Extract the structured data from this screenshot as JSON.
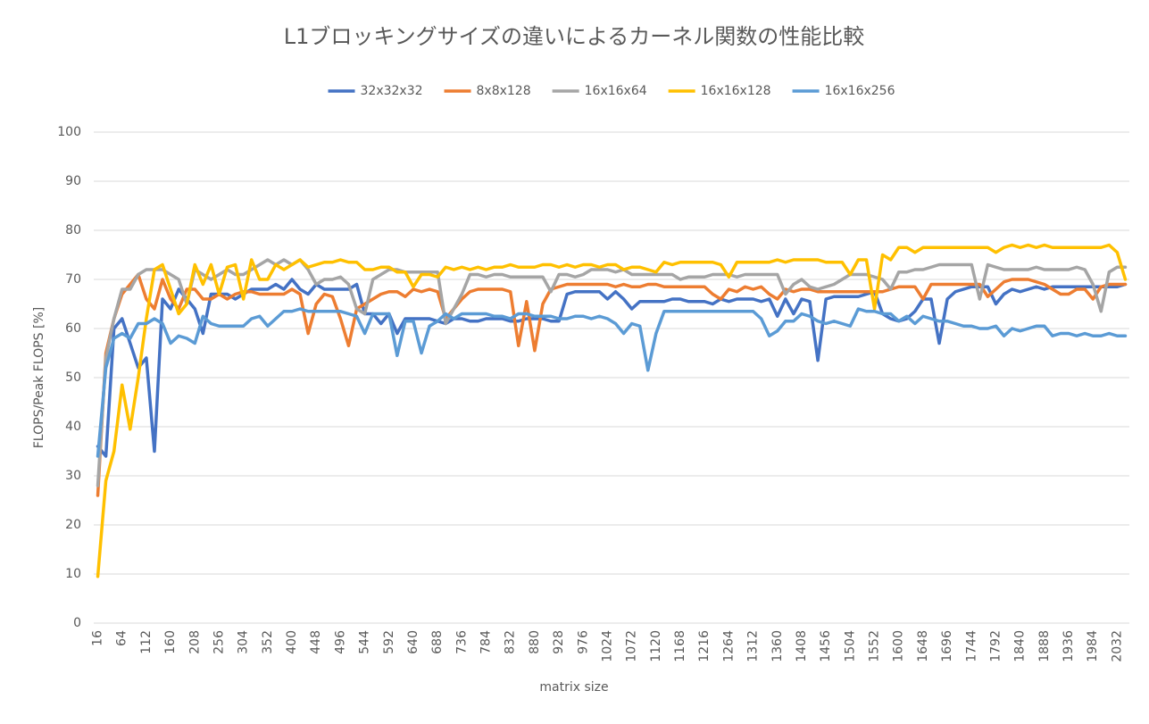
{
  "chart_data": {
    "type": "line",
    "title": "L1ブロッキングサイズの違いによるカーネル関数の性能比較",
    "x_label": "matrix size",
    "y_label": "FLOPS/Peak FLOPS [%]",
    "x": [
      16,
      32,
      48,
      64,
      80,
      96,
      112,
      128,
      144,
      160,
      176,
      192,
      208,
      224,
      240,
      256,
      272,
      288,
      304,
      320,
      336,
      352,
      368,
      384,
      400,
      416,
      432,
      448,
      464,
      480,
      496,
      512,
      528,
      544,
      560,
      576,
      592,
      608,
      624,
      640,
      656,
      672,
      688,
      704,
      720,
      736,
      752,
      768,
      784,
      800,
      816,
      832,
      848,
      864,
      880,
      896,
      912,
      928,
      944,
      960,
      976,
      992,
      1008,
      1024,
      1040,
      1056,
      1072,
      1088,
      1104,
      1120,
      1136,
      1152,
      1168,
      1184,
      1200,
      1216,
      1232,
      1248,
      1264,
      1280,
      1296,
      1312,
      1328,
      1344,
      1360,
      1376,
      1392,
      1408,
      1424,
      1440,
      1456,
      1472,
      1488,
      1504,
      1520,
      1536,
      1552,
      1568,
      1584,
      1600,
      1616,
      1632,
      1648,
      1664,
      1680,
      1696,
      1712,
      1728,
      1744,
      1760,
      1776,
      1792,
      1808,
      1824,
      1840,
      1856,
      1872,
      1888,
      1904,
      1920,
      1936,
      1952,
      1968,
      1984,
      2000,
      2016,
      2032,
      2048
    ],
    "xlim": [
      8,
      2056
    ],
    "xticks": [
      16,
      64,
      112,
      160,
      208,
      256,
      304,
      352,
      400,
      448,
      496,
      544,
      592,
      640,
      688,
      736,
      784,
      832,
      880,
      928,
      976,
      1024,
      1072,
      1120,
      1168,
      1216,
      1264,
      1312,
      1360,
      1408,
      1456,
      1504,
      1552,
      1600,
      1648,
      1696,
      1744,
      1792,
      1840,
      1888,
      1936,
      1984,
      2032
    ],
    "ylim": [
      0,
      100
    ],
    "yticks": [
      0,
      10,
      20,
      30,
      40,
      50,
      60,
      70,
      80,
      90,
      100
    ],
    "grid": true,
    "legend": "top",
    "series": [
      {
        "name": "32x32x32",
        "color": "#4472c4",
        "values": [
          36,
          34,
          60,
          62,
          57,
          52,
          54,
          35,
          66,
          64,
          68,
          66,
          64,
          59,
          67,
          67,
          67,
          66,
          67,
          68,
          68,
          68,
          69,
          68,
          70,
          68,
          67,
          69,
          68,
          68,
          68,
          68,
          69,
          63,
          63,
          61,
          63,
          59,
          62,
          62,
          62,
          62,
          61.5,
          61,
          62,
          62,
          61.5,
          61.5,
          62,
          62,
          62,
          61.5,
          61.5,
          62,
          62,
          62,
          61.5,
          61.5,
          67,
          67.5,
          67.5,
          67.5,
          67.5,
          66,
          67.5,
          66,
          64,
          65.5,
          65.5,
          65.5,
          65.5,
          66,
          66,
          65.5,
          65.5,
          65.5,
          65,
          66,
          65.5,
          66,
          66,
          66,
          65.5,
          66,
          62.5,
          66,
          63,
          66,
          65.5,
          53.5,
          66,
          66.5,
          66.5,
          66.5,
          66.5,
          67,
          67.5,
          63,
          62,
          61.5,
          62,
          63.5,
          66,
          66,
          57,
          66,
          67.5,
          68,
          68.5,
          68.5,
          68.5,
          65,
          67,
          68,
          67.5,
          68,
          68.5,
          68,
          68.5,
          68.5,
          68.5,
          68.5,
          68.5,
          68.5,
          68.5,
          68.5,
          68.5,
          69
        ]
      },
      {
        "name": "8x8x128",
        "color": "#ed7d31",
        "values": [
          26,
          55,
          62,
          67,
          69,
          71,
          66,
          64,
          70,
          66,
          64,
          68,
          68,
          66,
          66,
          67,
          66,
          67,
          67.5,
          67.5,
          67,
          67,
          67,
          67,
          68,
          67,
          59,
          65,
          67,
          66.5,
          62,
          56.5,
          64,
          65,
          66,
          67,
          67.5,
          67.5,
          66.5,
          68,
          67.5,
          68,
          67.5,
          62,
          64,
          66,
          67.5,
          68,
          68,
          68,
          68,
          67.5,
          56.5,
          65.5,
          55.5,
          65,
          68,
          68.5,
          69,
          69,
          69,
          69,
          69,
          69,
          68.5,
          69,
          68.5,
          68.5,
          69,
          69,
          68.5,
          68.5,
          68.5,
          68.5,
          68.5,
          68.5,
          67,
          66,
          68,
          67.5,
          68.5,
          68,
          68.5,
          67,
          66,
          68,
          67.5,
          68,
          68,
          67.5,
          67.5,
          67.5,
          67.5,
          67.5,
          67.5,
          67.5,
          67.5,
          67.5,
          68,
          68.5,
          68.5,
          68.5,
          66,
          69,
          69,
          69,
          69,
          69,
          69,
          69,
          66.5,
          68,
          69.5,
          70,
          70,
          70,
          69.5,
          69,
          68,
          67,
          67,
          68,
          68,
          66,
          68.5,
          69,
          69,
          69
        ]
      },
      {
        "name": "16x16x64",
        "color": "#a5a5a5",
        "values": [
          28,
          54,
          62,
          68,
          68,
          71,
          72,
          72,
          72,
          71,
          70,
          65,
          72,
          71,
          70,
          71,
          72,
          71,
          71,
          72,
          73,
          74,
          73,
          74,
          73,
          74,
          72,
          69,
          70,
          70,
          70.5,
          69,
          64,
          63,
          70,
          71,
          72,
          72,
          71.5,
          71.5,
          71.5,
          71.5,
          71.5,
          61,
          64,
          67,
          71,
          71,
          70.5,
          71,
          71,
          70.5,
          70.5,
          70.5,
          70.5,
          70.5,
          67.5,
          71,
          71,
          70.5,
          71,
          72,
          72,
          72,
          71.5,
          72,
          71,
          71,
          71,
          71,
          71,
          71,
          70,
          70.5,
          70.5,
          70.5,
          71,
          71,
          71,
          70.5,
          71,
          71,
          71,
          71,
          71,
          67,
          69,
          70,
          68.5,
          68,
          68.5,
          69,
          70,
          71,
          71,
          71,
          70.5,
          70,
          68,
          71.5,
          71.5,
          72,
          72,
          72.5,
          73,
          73,
          73,
          73,
          73,
          66,
          73,
          72.5,
          72,
          72,
          72,
          72,
          72.5,
          72,
          72,
          72,
          72,
          72.5,
          72,
          69,
          63.5,
          71.5,
          72.5,
          72.5
        ]
      },
      {
        "name": "16x16x128",
        "color": "#ffc000",
        "values": [
          9.5,
          29,
          35,
          48.5,
          39.5,
          50,
          62,
          72,
          73,
          68,
          63,
          65,
          73,
          69,
          73,
          67,
          72.5,
          73,
          66,
          74,
          70,
          70,
          73,
          72,
          73,
          74,
          72.5,
          73,
          73.5,
          73.5,
          74,
          73.5,
          73.5,
          72,
          72,
          72.5,
          72.5,
          71.5,
          71.5,
          68.5,
          71,
          71,
          70.5,
          72.5,
          72,
          72.5,
          72,
          72.5,
          72,
          72.5,
          72.5,
          73,
          72.5,
          72.5,
          72.5,
          73,
          73,
          72.5,
          73,
          72.5,
          73,
          73,
          72.5,
          73,
          73,
          72,
          72.5,
          72.5,
          72,
          71.5,
          73.5,
          73,
          73.5,
          73.5,
          73.5,
          73.5,
          73.5,
          73,
          70.5,
          73.5,
          73.5,
          73.5,
          73.5,
          73.5,
          74,
          73.5,
          74,
          74,
          74,
          74,
          73.5,
          73.5,
          73.5,
          71,
          74,
          74,
          64,
          75,
          74,
          76.5,
          76.5,
          75.5,
          76.5,
          76.5,
          76.5,
          76.5,
          76.5,
          76.5,
          76.5,
          76.5,
          76.5,
          75.5,
          76.5,
          77,
          76.5,
          77,
          76.5,
          77,
          76.5,
          76.5,
          76.5,
          76.5,
          76.5,
          76.5,
          76.5,
          77,
          75.5,
          70
        ]
      },
      {
        "name": "16x16x256",
        "color": "#5b9bd5",
        "values": [
          34,
          52,
          58,
          59,
          58,
          61,
          61,
          62,
          61,
          57,
          58.5,
          58,
          57,
          62.5,
          61,
          60.5,
          60.5,
          60.5,
          60.5,
          62,
          62.5,
          60.5,
          62,
          63.5,
          63.5,
          64,
          63.5,
          63.5,
          63.5,
          63.5,
          63.5,
          63,
          62.5,
          59,
          63,
          63,
          63,
          54.5,
          61.5,
          61.5,
          55,
          60.5,
          61.5,
          63,
          62,
          63,
          63,
          63,
          63,
          62.5,
          62.5,
          62,
          63,
          63,
          62.5,
          62.5,
          62.5,
          62,
          62,
          62.5,
          62.5,
          62,
          62.5,
          62,
          61,
          59,
          61,
          60.5,
          51.5,
          59,
          63.5,
          63.5,
          63.5,
          63.5,
          63.5,
          63.5,
          63.5,
          63.5,
          63.5,
          63.5,
          63.5,
          63.5,
          62,
          58.5,
          59.5,
          61.5,
          61.5,
          63,
          62.5,
          61.5,
          61,
          61.5,
          61,
          60.5,
          64,
          63.5,
          63.5,
          63,
          63,
          61.5,
          62.5,
          61,
          62.5,
          62,
          61.5,
          61.5,
          61,
          60.5,
          60.5,
          60,
          60,
          60.5,
          58.5,
          60,
          59.5,
          60,
          60.5,
          60.5,
          58.5,
          59,
          59,
          58.5,
          59,
          58.5,
          58.5,
          59,
          58.5,
          58.5
        ]
      }
    ]
  }
}
